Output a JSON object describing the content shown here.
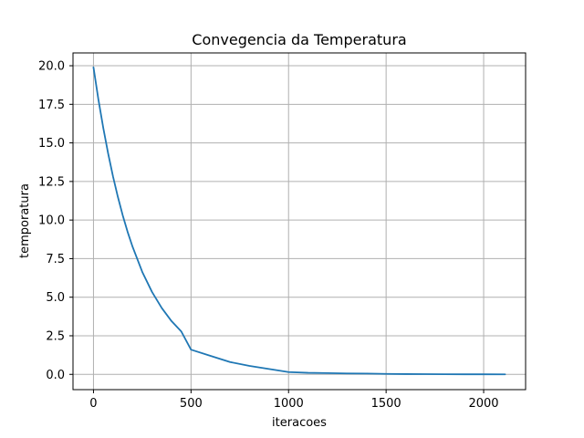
{
  "chart_data": {
    "type": "line",
    "title": "Convegencia da Temperatura",
    "xlabel": "iteracoes",
    "ylabel": "temporatura",
    "xlim": [
      -105,
      2215
    ],
    "ylim": [
      -0.99,
      20.83
    ],
    "grid": true,
    "xticks": [
      0,
      500,
      1000,
      1500,
      2000
    ],
    "xtick_labels": [
      "0",
      "500",
      "1000",
      "1500",
      "2000"
    ],
    "yticks": [
      0.0,
      2.5,
      5.0,
      7.5,
      10.0,
      12.5,
      15.0,
      17.5,
      20.0
    ],
    "ytick_labels": [
      "0.0",
      "2.5",
      "5.0",
      "7.5",
      "10.0",
      "12.5",
      "15.0",
      "17.5",
      "20.0"
    ],
    "colors": {
      "line": "#1f77b4",
      "grid": "#b0b0b0",
      "axes": "#000000"
    },
    "series": [
      {
        "x": [
          0,
          25,
          50,
          75,
          100,
          125,
          150,
          175,
          200,
          250,
          300,
          350,
          400,
          450,
          500,
          600,
          700,
          800,
          900,
          1000,
          1100,
          1200,
          1300,
          1400,
          1500,
          1600,
          1700,
          1800,
          1900,
          2000,
          2110
        ],
        "values": [
          19.9,
          17.83,
          15.98,
          14.32,
          12.83,
          11.5,
          10.3,
          9.23,
          8.28,
          6.64,
          5.34,
          4.3,
          3.45,
          2.78,
          1.6,
          1.2,
          0.8,
          0.55,
          0.35,
          0.15,
          0.1,
          0.08,
          0.06,
          0.05,
          0.03,
          0.02,
          0.015,
          0.01,
          0.005,
          0.003,
          0.0
        ]
      }
    ]
  }
}
